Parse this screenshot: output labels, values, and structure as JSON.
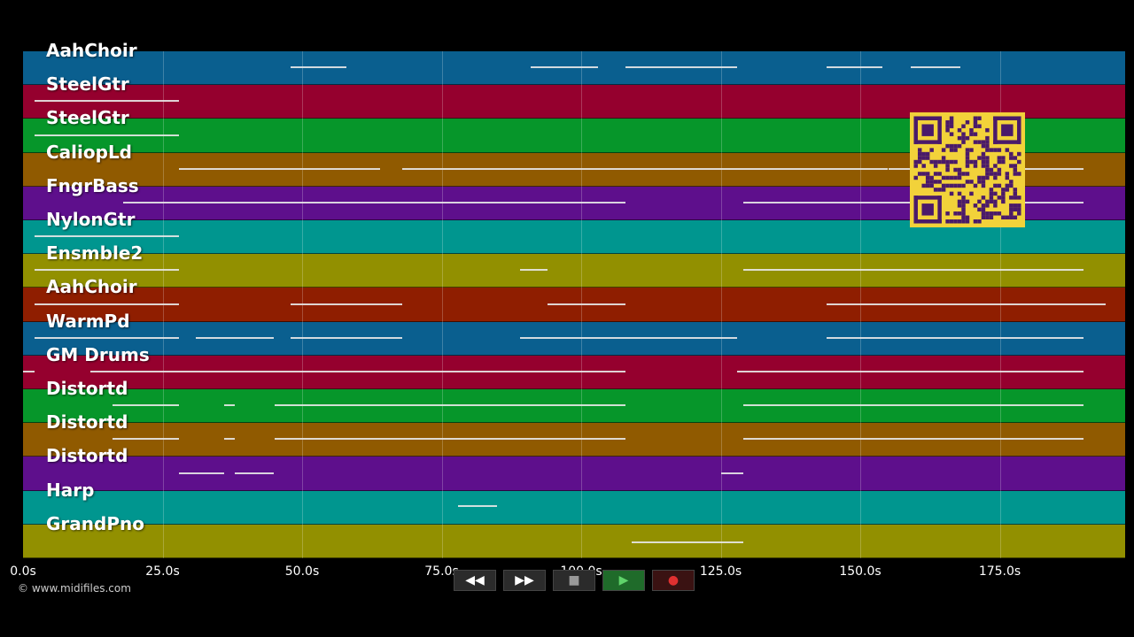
{
  "tracks": [
    {
      "name": "AahChoir",
      "color": "#0a5f8f"
    },
    {
      "name": "SteelGtr",
      "color": "#95002e"
    },
    {
      "name": "SteelGtr",
      "color": "#06962a"
    },
    {
      "name": "CaliopLd",
      "color": "#905a00"
    },
    {
      "name": "FngrBass",
      "color": "#5e0f8c"
    },
    {
      "name": "NylonGtr",
      "color": "#00968f"
    },
    {
      "name": "Ensmble2",
      "color": "#929000"
    },
    {
      "name": "AahChoir",
      "color": "#8f1e00"
    },
    {
      "name": "WarmPd",
      "color": "#0a5f8f"
    },
    {
      "name": "GM Drums",
      "color": "#95002e"
    },
    {
      "name": "Distortd",
      "color": "#06962a"
    },
    {
      "name": "Distortd",
      "color": "#905a00"
    },
    {
      "name": "Distortd",
      "color": "#5e0f8c"
    },
    {
      "name": "Harp",
      "color": "#00968f"
    },
    {
      "name": "GrandPno",
      "color": "#929000"
    }
  ],
  "timeline": {
    "ticks": [
      "0.0s",
      "25.0s",
      "50.0s",
      "75.0s",
      "100.0s",
      "125.0s",
      "150.0s",
      "175.0s"
    ],
    "max_seconds": 197
  },
  "copyright": "© www.midifiles.com",
  "controls": {
    "rewind": {
      "glyph": "◀◀",
      "icon": "rewind-icon"
    },
    "fast_forward": {
      "glyph": "▶▶",
      "icon": "fast-forward-icon"
    },
    "stop": {
      "glyph": "■",
      "icon": "stop-icon"
    },
    "play": {
      "glyph": "▶",
      "icon": "play-icon"
    },
    "record": {
      "glyph": "●",
      "icon": "record-icon"
    }
  },
  "qr_icon": "qr-code-icon"
}
